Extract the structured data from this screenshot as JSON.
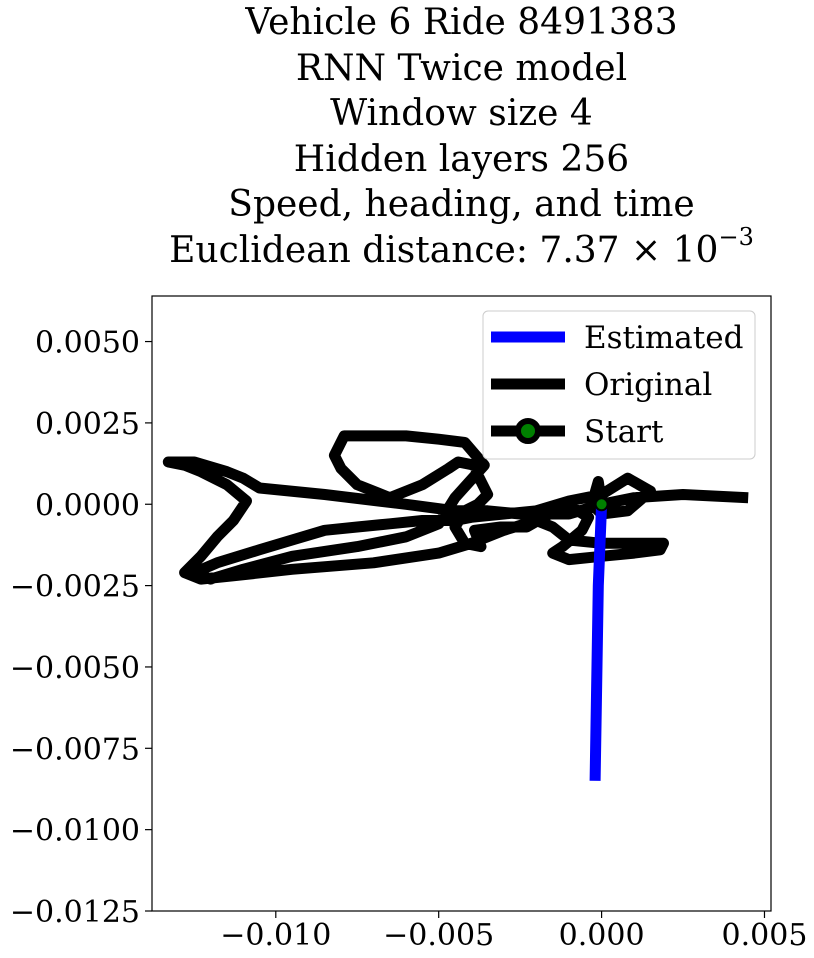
{
  "chart_data": {
    "type": "line",
    "title_lines": [
      "Vehicle 6 Ride 8491383",
      "RNN Twice model",
      "Window size 4",
      "Hidden layers 256",
      "Speed, heading, and time"
    ],
    "title_metric_prefix": "Euclidean distance: 7.37 × 10",
    "title_metric_exponent": "−3",
    "xlabel": "",
    "ylabel": "",
    "xlim": [
      -0.0138,
      0.0052
    ],
    "ylim": [
      -0.0125,
      0.0064
    ],
    "xticks": [
      -0.01,
      -0.005,
      0.0,
      0.005
    ],
    "xtick_labels": [
      "−0.010",
      "−0.005",
      "0.000",
      "0.005"
    ],
    "yticks": [
      0.005,
      0.0025,
      0.0,
      -0.0025,
      -0.005,
      -0.0075,
      -0.01,
      -0.0125
    ],
    "ytick_labels": [
      "0.0050",
      "0.0025",
      "0.0000",
      "−0.0025",
      "−0.0050",
      "−0.0075",
      "−0.0100",
      "−0.0125"
    ],
    "grid": false,
    "legend_position": "top-right",
    "series": [
      {
        "name": "Estimated",
        "color": "#0000ff",
        "x": [
          0.0,
          -0.0001,
          -0.0002
        ],
        "y": [
          0.0,
          -0.0025,
          -0.0085
        ]
      },
      {
        "name": "Original",
        "color": "#000000",
        "x": [
          0.0045,
          0.0025,
          0.001,
          0.0,
          -0.001,
          -0.0025,
          -0.0035,
          -0.0045,
          -0.006,
          -0.0085,
          -0.0105,
          -0.011,
          -0.0115,
          -0.0125,
          -0.0133,
          -0.0128,
          -0.0123,
          -0.0115,
          -0.0109,
          -0.0113,
          -0.0118,
          -0.0123,
          -0.0128,
          -0.0123,
          -0.0113,
          -0.0095,
          -0.007,
          -0.005,
          -0.004,
          -0.003,
          -0.002,
          -0.0015,
          -0.001,
          0.0,
          0.001,
          0.0019,
          0.0018,
          0.001,
          0.0,
          -0.001,
          -0.0015,
          -0.0012,
          -0.0006,
          -0.0004,
          -0.0009,
          -0.0016,
          -0.0023,
          -0.0031,
          -0.0039,
          -0.0037,
          -0.0042,
          -0.0045,
          -0.0042,
          -0.0038,
          -0.0035,
          -0.0038,
          -0.0039,
          -0.0044,
          -0.0047,
          -0.0055,
          -0.0065,
          -0.0075,
          -0.008,
          -0.0082,
          -0.0079,
          -0.0075,
          -0.007,
          -0.006,
          -0.005,
          -0.0042,
          -0.0036,
          -0.0045,
          -0.005,
          -0.006,
          -0.0075,
          -0.0095,
          -0.011,
          -0.012,
          -0.0125,
          -0.0118,
          -0.0105,
          -0.0095,
          -0.0085,
          -0.0075,
          -0.0065,
          -0.0055,
          -0.0045,
          -0.004,
          -0.003,
          -0.002,
          -0.001,
          0.0,
          0.0008,
          0.0015,
          0.0008,
          0.0,
          -0.0003,
          -0.0001,
          0.0
        ],
        "y": [
          0.0002,
          0.0003,
          0.0002,
          0.0,
          -0.0003,
          -0.0003,
          -0.0002,
          -0.0002,
          0.0,
          0.0003,
          0.0005,
          0.0008,
          0.001,
          0.0013,
          0.0013,
          0.0012,
          0.001,
          0.0006,
          0.0001,
          -0.0005,
          -0.001,
          -0.0016,
          -0.0021,
          -0.0023,
          -0.0022,
          -0.002,
          -0.0018,
          -0.0015,
          -0.0012,
          -0.0008,
          -0.0005,
          -0.0007,
          -0.0011,
          -0.0012,
          -0.0012,
          -0.0012,
          -0.0014,
          -0.0015,
          -0.0016,
          -0.0017,
          -0.0015,
          -0.0013,
          -0.0008,
          -0.0004,
          -0.0001,
          -0.0003,
          -0.0007,
          -0.0007,
          -0.0008,
          -0.0013,
          -0.0012,
          -0.0007,
          -0.0002,
          0.0,
          0.0003,
          0.0009,
          0.0012,
          0.0013,
          0.0011,
          0.0006,
          0.0002,
          0.0006,
          0.0011,
          0.0015,
          0.0021,
          0.0021,
          0.0021,
          0.0021,
          0.002,
          0.0019,
          0.0012,
          0.0002,
          -0.0006,
          -0.001,
          -0.0013,
          -0.0016,
          -0.002,
          -0.0023,
          -0.0021,
          -0.0018,
          -0.0014,
          -0.0011,
          -0.0008,
          -0.0007,
          -0.0006,
          -0.0005,
          -0.0005,
          -0.0004,
          -0.0003,
          -0.0002,
          0.0001,
          0.0003,
          0.0008,
          0.0004,
          -0.0002,
          -0.0003,
          0.0,
          0.0007,
          0.0
        ]
      },
      {
        "name": "Start",
        "color": "#000000",
        "marker_color": "#008000",
        "x": [
          0.0
        ],
        "y": [
          0.0
        ]
      }
    ]
  }
}
